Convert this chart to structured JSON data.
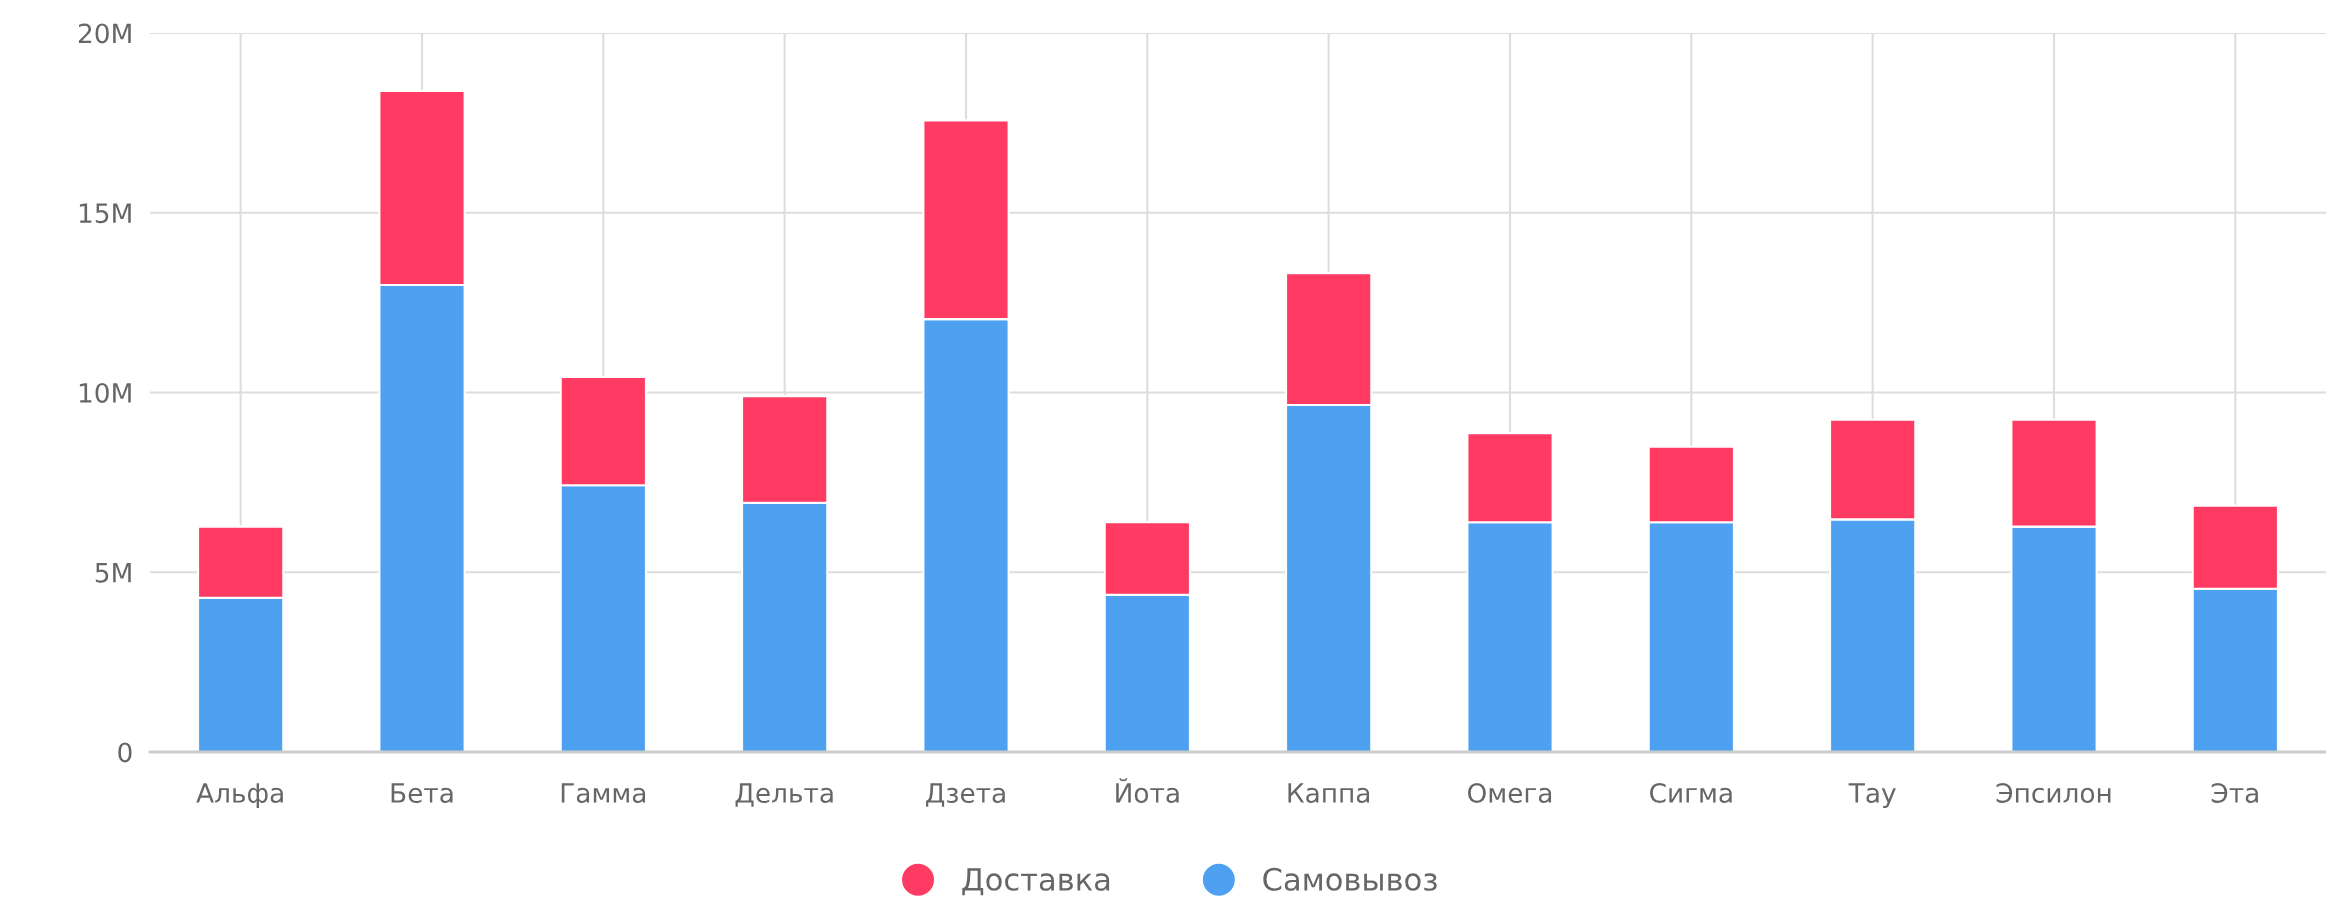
{
  "chart_data": {
    "type": "bar",
    "stacked": true,
    "categories": [
      "Альфа",
      "Бета",
      "Гамма",
      "Дельта",
      "Дзета",
      "Йота",
      "Каппа",
      "Омега",
      "Сигма",
      "Тау",
      "Эпсилон",
      "Эта"
    ],
    "series": [
      {
        "name": "Самовывоз",
        "color": "#4da1f0",
        "values": [
          4.29,
          12.99,
          7.42,
          6.93,
          12.04,
          4.37,
          9.65,
          6.39,
          6.39,
          6.47,
          6.27,
          4.54
        ]
      },
      {
        "name": "Доставка",
        "color": "#ff3b63",
        "values": [
          1.98,
          5.4,
          3.01,
          2.97,
          5.53,
          2.02,
          3.67,
          2.48,
          2.1,
          2.77,
          2.97,
          2.31
        ]
      }
    ],
    "ylim": [
      0,
      20
    ],
    "yticks": [
      {
        "value": 0,
        "label": "0"
      },
      {
        "value": 5,
        "label": "5M"
      },
      {
        "value": 10,
        "label": "10M"
      },
      {
        "value": 15,
        "label": "15M"
      },
      {
        "value": 20,
        "label": "20M"
      }
    ],
    "grid": true,
    "legend": "bottom"
  }
}
